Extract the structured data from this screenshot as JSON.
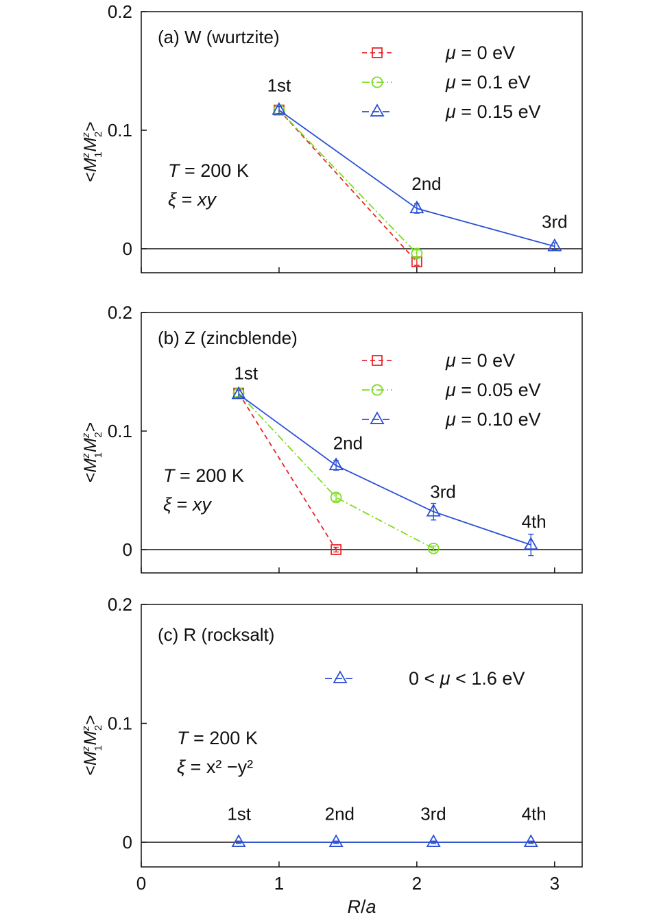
{
  "chart_data": [
    {
      "type": "line",
      "panel_label": "(a) W (wurtzite)",
      "ylabel": {
        "open": "<",
        "m1": "M",
        "m1sup": "z",
        "m1sub": "1",
        "m2": "M",
        "m2sup": "z",
        "m2sub": "2",
        "close": ">"
      },
      "ylim": [
        -0.02,
        0.2
      ],
      "yticks": [
        {
          "v": 0,
          "label": "0"
        },
        {
          "v": 0.1,
          "label": "0.1"
        },
        {
          "v": 0.2,
          "label": "0.2"
        }
      ],
      "xlim": [
        0,
        3.2
      ],
      "xticks": [
        0,
        1,
        2,
        3
      ],
      "show_xtick_labels": false,
      "zero_line": true,
      "annotations": {
        "temperature": {
          "sym": "T",
          "rest": " = 200 K"
        },
        "xi": {
          "sym": "ξ",
          "eq": " = ",
          "val": "xy"
        }
      },
      "neighbor_labels": [
        {
          "text": "1st",
          "x": 1.0,
          "y": 0.128
        },
        {
          "text": "2nd",
          "x": 2.07,
          "y": 0.045
        },
        {
          "text": "3rd",
          "x": 3.0,
          "y": 0.013
        }
      ],
      "series": [
        {
          "mu": "μ",
          "eq": " = 0 eV",
          "color": "#e8262b",
          "marker": "square",
          "dash": "7,5",
          "x": [
            1.0,
            2.0
          ],
          "y": [
            0.117,
            -0.011
          ],
          "err": [
            0.003,
            0.003
          ]
        },
        {
          "mu": "μ",
          "eq": " = 0.1 eV",
          "color": "#7ddc1f",
          "marker": "circle",
          "dash": "11,4,2,4",
          "x": [
            1.0,
            2.0
          ],
          "y": [
            0.117,
            -0.004
          ],
          "err": [
            0.003,
            0.003
          ]
        },
        {
          "mu": "μ",
          "eq": " = 0.15 eV",
          "color": "#2a4fd6",
          "marker": "triangle",
          "dash": "",
          "x": [
            1.0,
            2.0,
            3.0
          ],
          "y": [
            0.117,
            0.034,
            0.002
          ],
          "err": [
            0.003,
            0.004,
            0.003
          ]
        }
      ]
    },
    {
      "type": "line",
      "panel_label": "(b) Z (zincblende)",
      "ylabel": {
        "open": "<",
        "m1": "M",
        "m1sup": "z",
        "m1sub": "1",
        "m2": "M",
        "m2sup": "z",
        "m2sub": "2",
        "close": ">"
      },
      "ylim": [
        -0.02,
        0.2
      ],
      "yticks": [
        {
          "v": 0,
          "label": "0"
        },
        {
          "v": 0.1,
          "label": "0.1"
        },
        {
          "v": 0.2,
          "label": "0.2"
        }
      ],
      "xlim": [
        0,
        3.2
      ],
      "xticks": [
        0,
        1,
        2,
        3
      ],
      "show_xtick_labels": false,
      "zero_line": true,
      "annotations": {
        "temperature": {
          "sym": "T",
          "rest": " = 200 K"
        },
        "xi": {
          "sym": "ξ",
          "eq": " = ",
          "val": "xy"
        }
      },
      "neighbor_labels": [
        {
          "text": "1st",
          "x": 0.76,
          "y": 0.139
        },
        {
          "text": "2nd",
          "x": 1.5,
          "y": 0.08
        },
        {
          "text": "3rd",
          "x": 2.19,
          "y": 0.039
        },
        {
          "text": "4th",
          "x": 2.85,
          "y": 0.014
        }
      ],
      "series": [
        {
          "mu": "μ",
          "eq": " = 0 eV",
          "color": "#e8262b",
          "marker": "square",
          "dash": "7,5",
          "x": [
            0.707,
            1.414
          ],
          "y": [
            0.132,
            0.0
          ],
          "err": [
            0.003,
            0.002
          ]
        },
        {
          "mu": "μ",
          "eq": " = 0.05 eV",
          "color": "#7ddc1f",
          "marker": "circle",
          "dash": "11,4,2,4",
          "x": [
            0.707,
            1.414,
            2.121
          ],
          "y": [
            0.132,
            0.044,
            0.001
          ],
          "err": [
            0.003,
            0.003,
            0.002
          ]
        },
        {
          "mu": "μ",
          "eq": " = 0.10 eV",
          "color": "#2a4fd6",
          "marker": "triangle",
          "dash": "",
          "x": [
            0.707,
            1.414,
            2.121,
            2.828
          ],
          "y": [
            0.131,
            0.071,
            0.032,
            0.004
          ],
          "err": [
            0.003,
            0.004,
            0.007,
            0.009
          ]
        }
      ]
    },
    {
      "type": "line",
      "panel_label": "(c) R (rocksalt)",
      "ylabel": {
        "open": "<",
        "m1": "M",
        "m1sup": "z",
        "m1sub": "1",
        "m2": "M",
        "m2sup": "z",
        "m2sub": "2",
        "close": ">"
      },
      "ylim": [
        -0.02,
        0.2
      ],
      "yticks": [
        {
          "v": 0,
          "label": "0"
        },
        {
          "v": 0.1,
          "label": "0.1"
        },
        {
          "v": 0.2,
          "label": "0.2"
        }
      ],
      "xlim": [
        0,
        3.2
      ],
      "xticks": [
        0,
        1,
        2,
        3
      ],
      "xtick_labels": [
        "0",
        "1",
        "2",
        "3"
      ],
      "show_xtick_labels": true,
      "xlabel": "R/a",
      "zero_line": true,
      "annotations": {
        "temperature": {
          "sym": "T",
          "rest": " = 200 K"
        },
        "xi": {
          "sym": "ξ",
          "eq": " = ",
          "val": "x² −y²"
        }
      },
      "neighbor_labels": [
        {
          "text": "1st",
          "x": 0.71,
          "y": 0.014
        },
        {
          "text": "2nd",
          "x": 1.44,
          "y": 0.014
        },
        {
          "text": "3rd",
          "x": 2.12,
          "y": 0.014
        },
        {
          "text": "4th",
          "x": 2.85,
          "y": 0.014
        }
      ],
      "series": [
        {
          "label": "0 < μ < 1.6 eV",
          "color": "#2a4fd6",
          "marker": "triangle",
          "dash": "",
          "x": [
            0.707,
            1.414,
            2.121,
            2.828
          ],
          "y": [
            0.0,
            0.0,
            0.0,
            0.0
          ],
          "err": [
            0.001,
            0.001,
            0.001,
            0.001
          ]
        }
      ]
    }
  ]
}
